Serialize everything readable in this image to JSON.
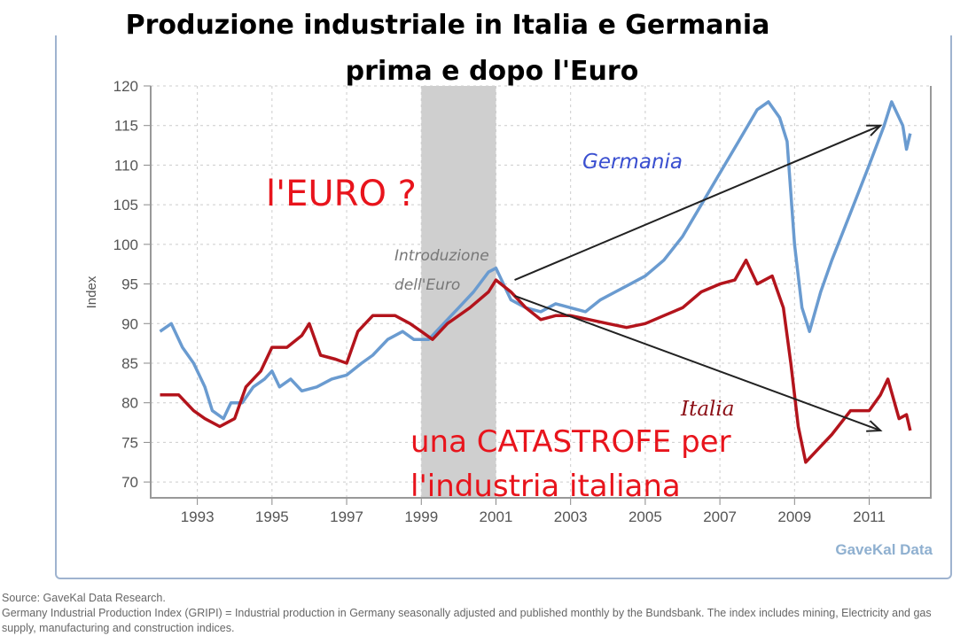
{
  "chart_data": {
    "type": "line",
    "title": "Produzione industriale in Italia e Germania",
    "subtitle": "prima e dopo l'Euro",
    "ylabel": "Index",
    "xlabel": "",
    "ylim": [
      68,
      120
    ],
    "xlim": [
      1991.75,
      2012.65
    ],
    "yticks": [
      70,
      75,
      80,
      85,
      90,
      95,
      100,
      105,
      110,
      115,
      120
    ],
    "xticks": [
      1993,
      1995,
      1997,
      1999,
      2001,
      2003,
      2005,
      2007,
      2009,
      2011
    ],
    "grid": true,
    "shaded_period": [
      1999,
      2001
    ],
    "series": [
      {
        "name": "Germania",
        "color": "#6a9bd0",
        "x": [
          1992.0,
          1992.3,
          1992.6,
          1992.9,
          1993.2,
          1993.4,
          1993.7,
          1993.9,
          1994.2,
          1994.5,
          1994.8,
          1995.0,
          1995.2,
          1995.5,
          1995.8,
          1996.2,
          1996.6,
          1997.0,
          1997.4,
          1997.7,
          1998.1,
          1998.5,
          1998.8,
          1999.2,
          1999.6,
          2000.0,
          2000.4,
          2000.8,
          2001.0,
          2001.4,
          2001.8,
          2002.2,
          2002.6,
          2003.0,
          2003.4,
          2003.8,
          2004.2,
          2004.6,
          2005.0,
          2005.5,
          2006.0,
          2006.5,
          2007.0,
          2007.5,
          2008.0,
          2008.3,
          2008.6,
          2008.8,
          2009.0,
          2009.2,
          2009.4,
          2009.7,
          2010.0,
          2010.5,
          2011.0,
          2011.4,
          2011.6,
          2011.9,
          2012.0,
          2012.1
        ],
        "y": [
          89,
          90,
          87,
          85,
          82,
          79,
          78,
          80,
          80,
          82,
          83,
          84,
          82,
          83,
          81.5,
          82,
          83,
          83.5,
          85,
          86,
          88,
          89,
          88,
          88,
          90,
          92,
          94,
          96.5,
          97,
          93,
          92,
          91.5,
          92.5,
          92,
          91.5,
          93,
          94,
          95,
          96,
          98,
          101,
          105,
          109,
          113,
          117,
          118,
          116,
          113,
          100,
          92,
          89,
          94,
          98,
          104,
          110,
          115,
          118,
          115,
          112,
          114
        ]
      },
      {
        "name": "Italia",
        "color": "#b3141c",
        "x": [
          1992.0,
          1992.5,
          1992.9,
          1993.2,
          1993.6,
          1994.0,
          1994.3,
          1994.7,
          1995.0,
          1995.4,
          1995.8,
          1996.0,
          1996.3,
          1996.7,
          1997.0,
          1997.3,
          1997.7,
          1998.3,
          1998.7,
          1999.0,
          1999.3,
          1999.7,
          2000.3,
          2000.8,
          2001.0,
          2001.4,
          2001.8,
          2002.2,
          2002.6,
          2003.0,
          2003.5,
          2004.0,
          2004.5,
          2005.0,
          2005.5,
          2006.0,
          2006.5,
          2007.0,
          2007.4,
          2007.7,
          2008.0,
          2008.4,
          2008.7,
          2008.9,
          2009.1,
          2009.3,
          2009.6,
          2010.0,
          2010.5,
          2011.0,
          2011.3,
          2011.5,
          2011.8,
          2012.0,
          2012.1
        ],
        "y": [
          81,
          81,
          79,
          78,
          77,
          78,
          82,
          84,
          87,
          87,
          88.5,
          90,
          86,
          85.5,
          85,
          89,
          91,
          91,
          90,
          89,
          88,
          90,
          92,
          94,
          95.5,
          94,
          92,
          90.5,
          91,
          91,
          90.5,
          90,
          89.5,
          90,
          91,
          92,
          94,
          95,
          95.5,
          98,
          95,
          96,
          92,
          85,
          77,
          72.5,
          74,
          76,
          79,
          79,
          81,
          83,
          78,
          78.5,
          76.5
        ]
      }
    ],
    "arrows": [
      {
        "from": [
          2001.5,
          95.5
        ],
        "to": [
          2011.3,
          115
        ]
      },
      {
        "from": [
          2001.5,
          93.5
        ],
        "to": [
          2011.3,
          76.5
        ]
      }
    ],
    "annotations": {
      "euro_question": "l'EURO ?",
      "intro_line1": "Introduzione",
      "intro_line2": "dell'Euro",
      "germania": "Germania",
      "italia": "Italia",
      "catastrofe_line1": "una CATASTROFE per",
      "catastrofe_line2": "l'industria italiana",
      "watermark": "GaveKal Data"
    }
  },
  "footer": {
    "source": "Source: GaveKal Data Research.",
    "note": "Germany Industrial Production Index (GRIPI) = Industrial production in Germany seasonally adjusted and published monthly by the Bundsbank. The index includes mining, Electricity and gas supply, manufacturing and construction indices."
  }
}
